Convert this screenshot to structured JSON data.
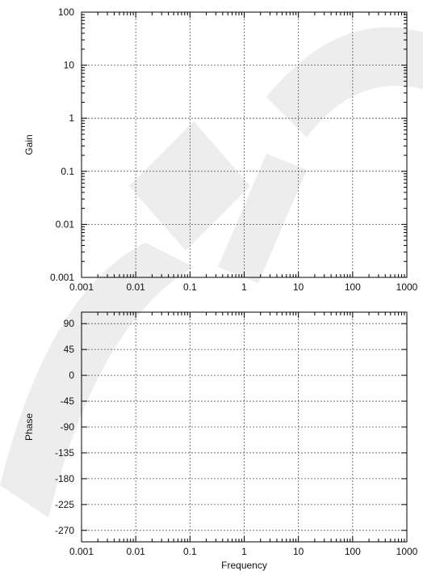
{
  "chart_data": [
    {
      "type": "line",
      "title": "",
      "xlabel": "",
      "ylabel": "Gain",
      "x_scale": "log",
      "y_scale": "log",
      "xlim": [
        0.001,
        1000
      ],
      "ylim": [
        0.001,
        100
      ],
      "x_ticks": [
        "0.001",
        "0.01",
        "0.1",
        "1",
        "10",
        "100",
        "1000"
      ],
      "y_ticks": [
        "0.001",
        "0.01",
        "0.1",
        "1",
        "10",
        "100"
      ],
      "grid": true,
      "series": []
    },
    {
      "type": "line",
      "title": "",
      "xlabel": "Frequency",
      "ylabel": "Phase",
      "x_scale": "log",
      "y_scale": "linear",
      "xlim": [
        0.001,
        1000
      ],
      "ylim": [
        -290,
        110
      ],
      "x_ticks": [
        "0.001",
        "0.01",
        "0.1",
        "1",
        "10",
        "100",
        "1000"
      ],
      "y_ticks": [
        "90",
        "45",
        "0",
        "-45",
        "-90",
        "-135",
        "-180",
        "-225",
        "-270"
      ],
      "grid": true,
      "series": []
    }
  ]
}
